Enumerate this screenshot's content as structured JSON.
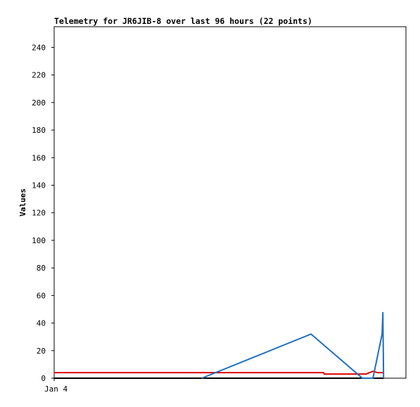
{
  "chart_data": {
    "type": "line",
    "title": "Telemetry for JR6JIB-8 over last 96 hours (22 points)",
    "y_label": "Values",
    "xlim": [
      0,
      96
    ],
    "xticks": [
      {
        "value": 0,
        "label": "Jan 4"
      }
    ],
    "ylim": [
      0,
      255
    ],
    "yticks": [
      0,
      20,
      40,
      60,
      80,
      100,
      120,
      140,
      160,
      180,
      200,
      220,
      240
    ],
    "grid": false,
    "series": [
      {
        "color": "#000000",
        "x": [
          0,
          89.9
        ],
        "values": [
          0,
          0
        ]
      },
      {
        "color": "#e00000",
        "x": [
          0,
          73.5,
          73.7,
          85.1,
          87.0,
          88.3,
          89.9
        ],
        "values": [
          4,
          4,
          3,
          3,
          5,
          4,
          4
        ]
      },
      {
        "color": "#1f6fc0",
        "x": [
          40.3,
          70.1,
          84.1,
          87.0,
          89.5,
          89.7,
          89.8,
          89.9
        ],
        "values": [
          0,
          32,
          0,
          0,
          32,
          48,
          25,
          0
        ]
      }
    ]
  }
}
